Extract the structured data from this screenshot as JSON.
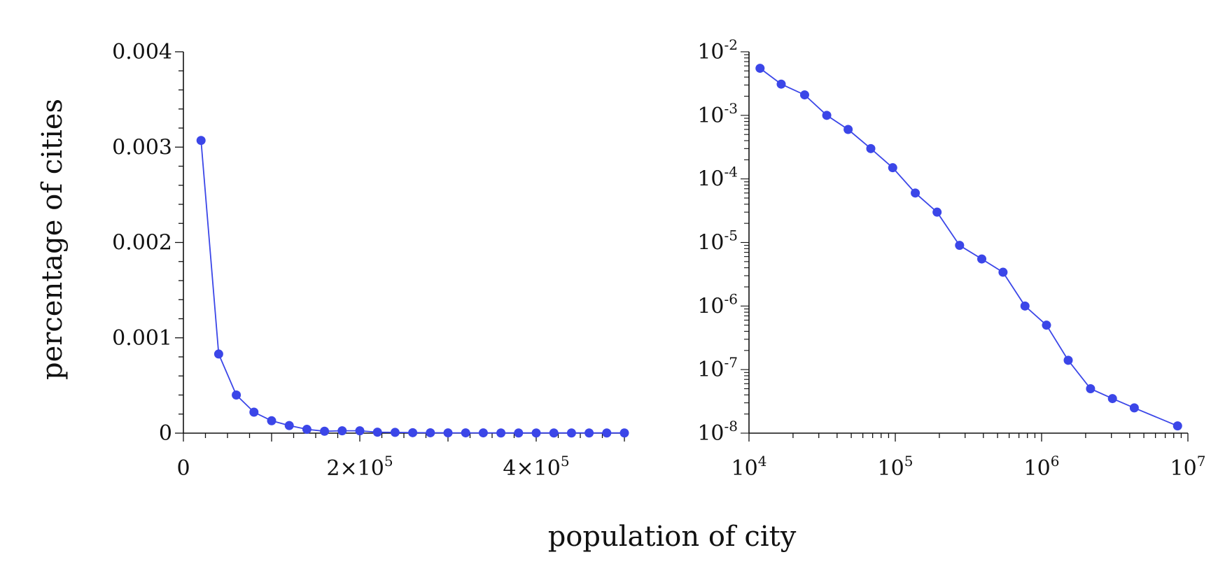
{
  "shared_labels": {
    "ylabel": "percentage of cities",
    "xlabel": "population of city"
  },
  "colors": {
    "series": "#3b46e8",
    "axis": "#111111"
  },
  "chart_data": [
    {
      "type": "line",
      "scale": "linear",
      "marker": "circle",
      "xlim": [
        0,
        500000
      ],
      "ylim": [
        0,
        0.004
      ],
      "x_tick_labels": [
        {
          "value": 0,
          "label": "0"
        },
        {
          "value": 200000,
          "label": "2×10",
          "sup": "5"
        },
        {
          "value": 400000,
          "label": "4×10",
          "sup": "5"
        }
      ],
      "y_tick_labels": [
        {
          "value": 0,
          "label": "0"
        },
        {
          "value": 0.001,
          "label": "0.001"
        },
        {
          "value": 0.002,
          "label": "0.002"
        },
        {
          "value": 0.003,
          "label": "0.003"
        },
        {
          "value": 0.004,
          "label": "0.004"
        }
      ],
      "x": [
        20000,
        40000,
        60000,
        80000,
        100000,
        120000,
        140000,
        160000,
        180000,
        200000,
        220000,
        240000,
        260000,
        280000,
        300000,
        320000,
        340000,
        360000,
        380000,
        400000,
        420000,
        440000,
        460000,
        480000,
        500000
      ],
      "y": [
        0.00307,
        0.00083,
        0.0004,
        0.00022,
        0.00013,
        8e-05,
        4e-05,
        2e-05,
        2.5e-05,
        2.5e-05,
        1e-05,
        8e-06,
        5e-06,
        4e-06,
        3e-06,
        3e-06,
        3e-06,
        2e-06,
        2e-06,
        2e-06,
        2e-06,
        2e-06,
        2e-06,
        2e-06,
        2e-06
      ]
    },
    {
      "type": "line",
      "scale": "log-log",
      "marker": "circle",
      "xlim": [
        10000,
        10000000
      ],
      "ylim": [
        1e-08,
        0.01
      ],
      "x_tick_labels": [
        {
          "value": 10000,
          "label": "10",
          "sup": "4"
        },
        {
          "value": 100000,
          "label": "10",
          "sup": "5"
        },
        {
          "value": 1000000,
          "label": "10",
          "sup": "6"
        },
        {
          "value": 10000000,
          "label": "10",
          "sup": "7"
        }
      ],
      "y_tick_labels": [
        {
          "value": 1e-08,
          "label": "10",
          "sup": "-8"
        },
        {
          "value": 1e-07,
          "label": "10",
          "sup": "-7"
        },
        {
          "value": 1e-06,
          "label": "10",
          "sup": "-6"
        },
        {
          "value": 1e-05,
          "label": "10",
          "sup": "-5"
        },
        {
          "value": 0.0001,
          "label": "10",
          "sup": "-4"
        },
        {
          "value": 0.001,
          "label": "10",
          "sup": "-3"
        },
        {
          "value": 0.01,
          "label": "10",
          "sup": "-2"
        }
      ],
      "x": [
        11900,
        16600,
        24000,
        34000,
        47600,
        68000,
        96000,
        137000,
        193000,
        275000,
        390000,
        545000,
        770000,
        1080000,
        1520000,
        2160000,
        3050000,
        4300000,
        8500000
      ],
      "y": [
        0.0055,
        0.0031,
        0.0021,
        0.001,
        0.0006,
        0.0003,
        0.00015,
        6e-05,
        3e-05,
        9e-06,
        5.5e-06,
        3.4e-06,
        1e-06,
        5e-07,
        1.4e-07,
        5e-08,
        3.5e-08,
        2.5e-08,
        1.3e-08
      ]
    }
  ]
}
